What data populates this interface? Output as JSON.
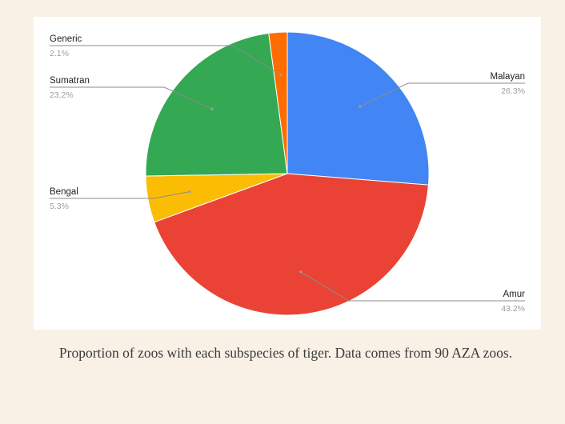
{
  "caption": "Proportion of zoos with each subspecies of tiger. Data comes from 90 AZA zoos.",
  "chart_data": {
    "type": "pie",
    "title": "",
    "legend": "callout labels",
    "slices": [
      {
        "label": "Malayan",
        "value": 26.3,
        "display": "26.3%",
        "color": "#4285f4",
        "side": "right"
      },
      {
        "label": "Amur",
        "value": 43.2,
        "display": "43.2%",
        "color": "#ea4335",
        "side": "right"
      },
      {
        "label": "Bengal",
        "value": 5.3,
        "display": "5.3%",
        "color": "#fbbc04",
        "side": "left"
      },
      {
        "label": "Sumatran",
        "value": 23.2,
        "display": "23.2%",
        "color": "#34a853",
        "side": "left"
      },
      {
        "label": "Generic",
        "value": 2.1,
        "display": "2.1%",
        "color": "#ff6d01",
        "side": "left"
      }
    ]
  }
}
